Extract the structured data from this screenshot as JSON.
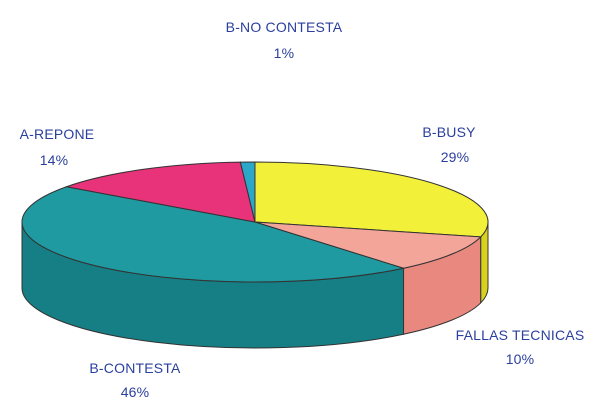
{
  "chart_data": {
    "type": "pie",
    "style": "3d",
    "slices": [
      {
        "label": "B-BUSY",
        "value_label": "29%",
        "value": 29,
        "color": "#f3f03a",
        "side_color": "#d8d21f"
      },
      {
        "label": "FALLAS TECNICAS",
        "value_label": "10%",
        "value": 10,
        "color": "#f3a59a",
        "side_color": "#e8887e"
      },
      {
        "label": "B-CONTESTA",
        "value_label": "46%",
        "value": 46,
        "color": "#1f9aa1",
        "side_color": "#167f85"
      },
      {
        "label": "A-REPONE",
        "value_label": "14%",
        "value": 14,
        "color": "#e8327a",
        "side_color": "#c4225f"
      },
      {
        "label": "B-NO CONTESTA",
        "value_label": "1%",
        "value": 1,
        "color": "#2ba7c8",
        "side_color": "#1c86a4"
      }
    ]
  }
}
